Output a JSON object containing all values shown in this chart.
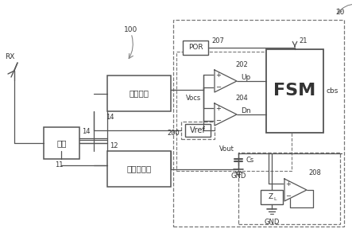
{
  "bg_color": "#ffffff",
  "lc": "#555555",
  "dc": "#777777",
  "fig_width": 4.43,
  "fig_height": 3.07,
  "dpi": 100,
  "labels": {
    "rx": "RX",
    "match": "匹配",
    "sense": "感测电路",
    "power_conv": "功率转换器",
    "vref": "Vref",
    "vocs": "Vocs",
    "vout": "Vout",
    "por": "POR",
    "fsm": "FSM",
    "up": "Up",
    "dn": "Dn",
    "cbs": "cbs",
    "zl": "Z",
    "zl_sub": "L",
    "cs": "Cs",
    "gnd": "GND",
    "n11": "11",
    "n12": "12",
    "n14": "14",
    "n20": "20",
    "n21": "21",
    "n100": "100",
    "n200": "200",
    "n202": "202",
    "n204": "204",
    "n207": "207",
    "n208": "208"
  }
}
